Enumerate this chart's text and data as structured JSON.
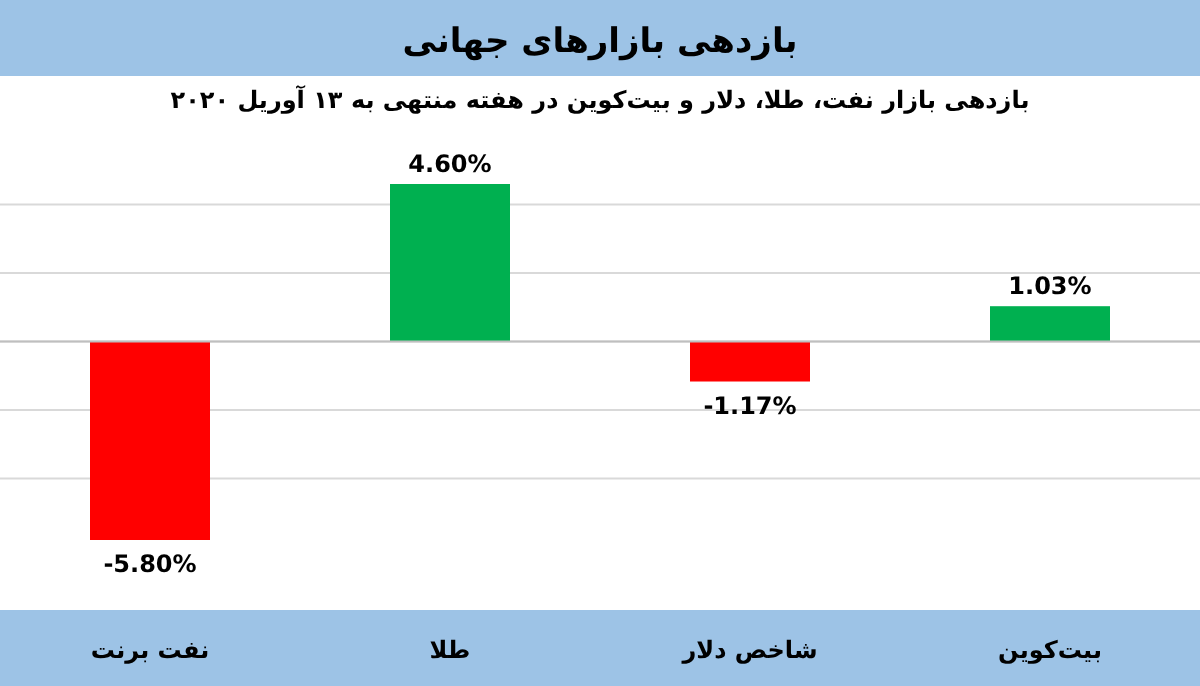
{
  "chart_data": {
    "type": "bar",
    "title": "بازدهی بازارهای جهانی",
    "subtitle": "بازدهی بازار نفت، طلا، دلار و بیت‌کوین در هفته منتهی به ۱۳ آوریل ۲۰۲۰",
    "categories": [
      "نفت برنت",
      "طلا",
      "شاخص دلار",
      "بیت‌کوین"
    ],
    "values": [
      -5.8,
      4.6,
      -1.17,
      1.03
    ],
    "colors": [
      "#ff0000",
      "#00b050",
      "#ff0000",
      "#00b050"
    ],
    "value_labels": [
      "-5.80%",
      "4.60%",
      "-1.17%",
      "1.03%"
    ],
    "yticks": [
      {
        "value": -4,
        "label": null
      },
      {
        "value": -2,
        "label": null
      },
      {
        "value": 0,
        "label": null
      },
      {
        "value": 2,
        "label": null
      },
      {
        "value": 4,
        "label": null
      }
    ],
    "grid": "y"
  }
}
